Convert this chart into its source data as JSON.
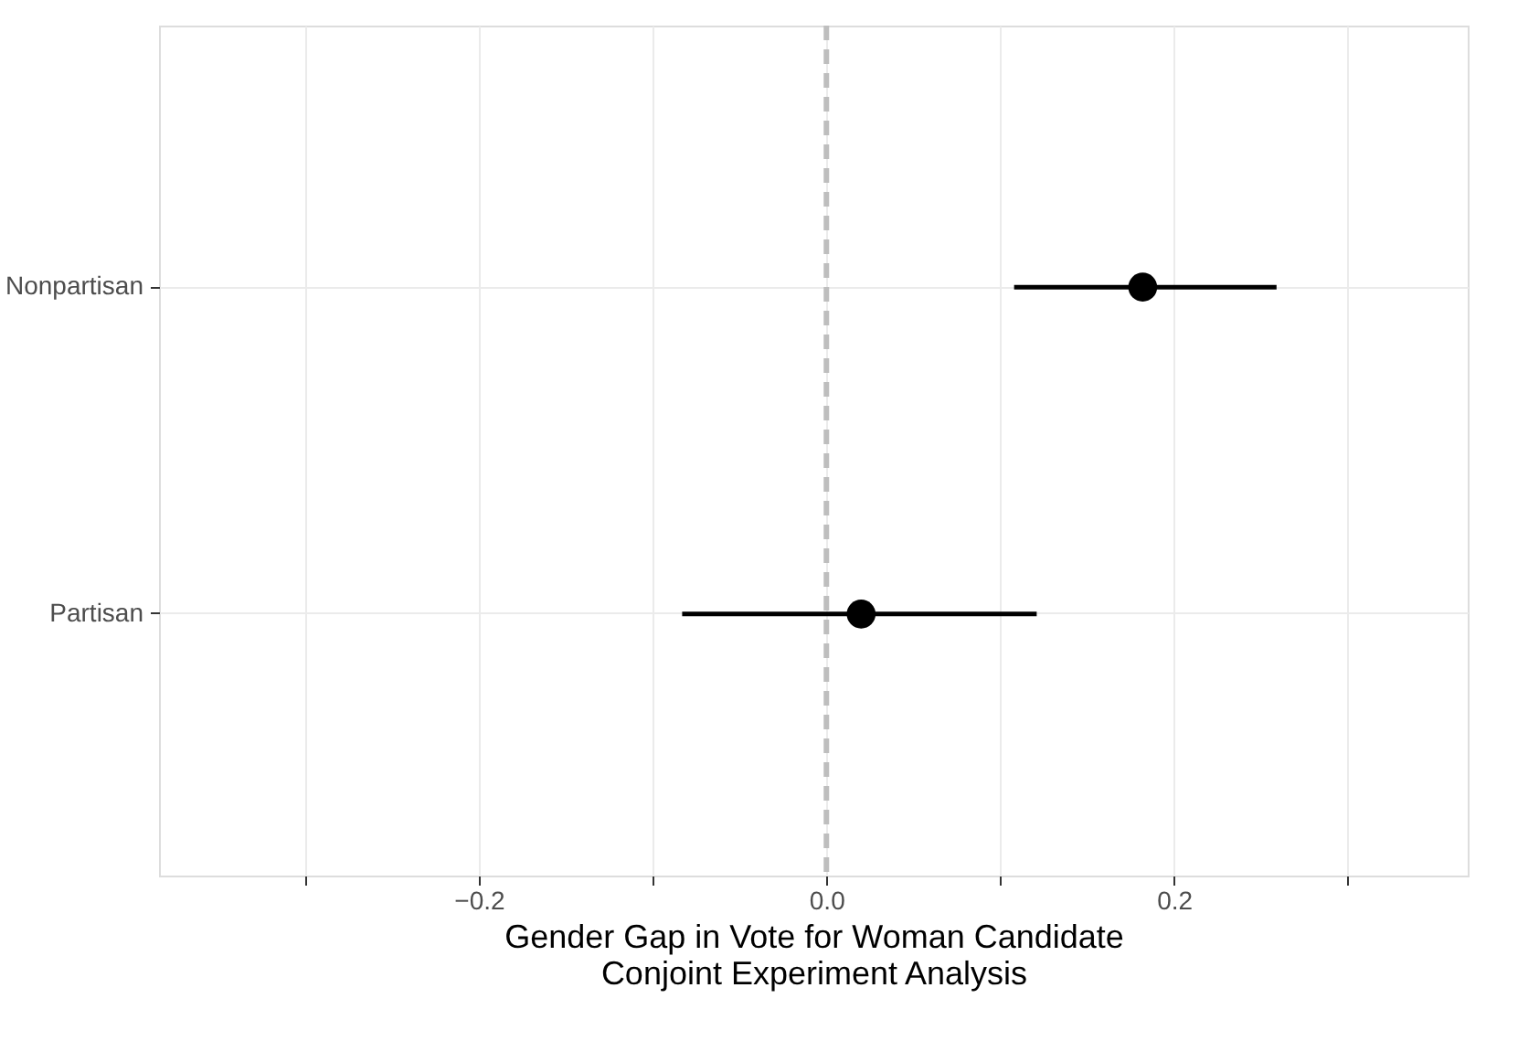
{
  "chart_data": {
    "type": "scatter",
    "orientation": "horizontal",
    "xlabel": "Gender Gap in Vote for Woman Candidate\nConjoint Experiment Analysis",
    "categories": [
      "Nonpartisan",
      "Partisan"
    ],
    "series": [
      {
        "color": "#000000",
        "values": [
          0.182,
          0.02
        ],
        "errors": [
          [
            0.108,
            0.259
          ],
          [
            -0.083,
            0.121
          ]
        ]
      }
    ],
    "xlim": [
      -0.384,
      0.369
    ],
    "xticks": [
      {
        "value": -0.3,
        "label": null
      },
      {
        "value": -0.2,
        "label": "−0.2"
      },
      {
        "value": -0.1,
        "label": null
      },
      {
        "value": 0,
        "label": "0.0"
      },
      {
        "value": 0.1,
        "label": null
      },
      0.2,
      {
        "value": 0.3,
        "label": null
      }
    ],
    "ref_lines": [
      {
        "axis": "x",
        "value": 0,
        "color": "#bebebe",
        "line_style": "dashed"
      }
    ],
    "grid": true,
    "marker": "circle"
  }
}
